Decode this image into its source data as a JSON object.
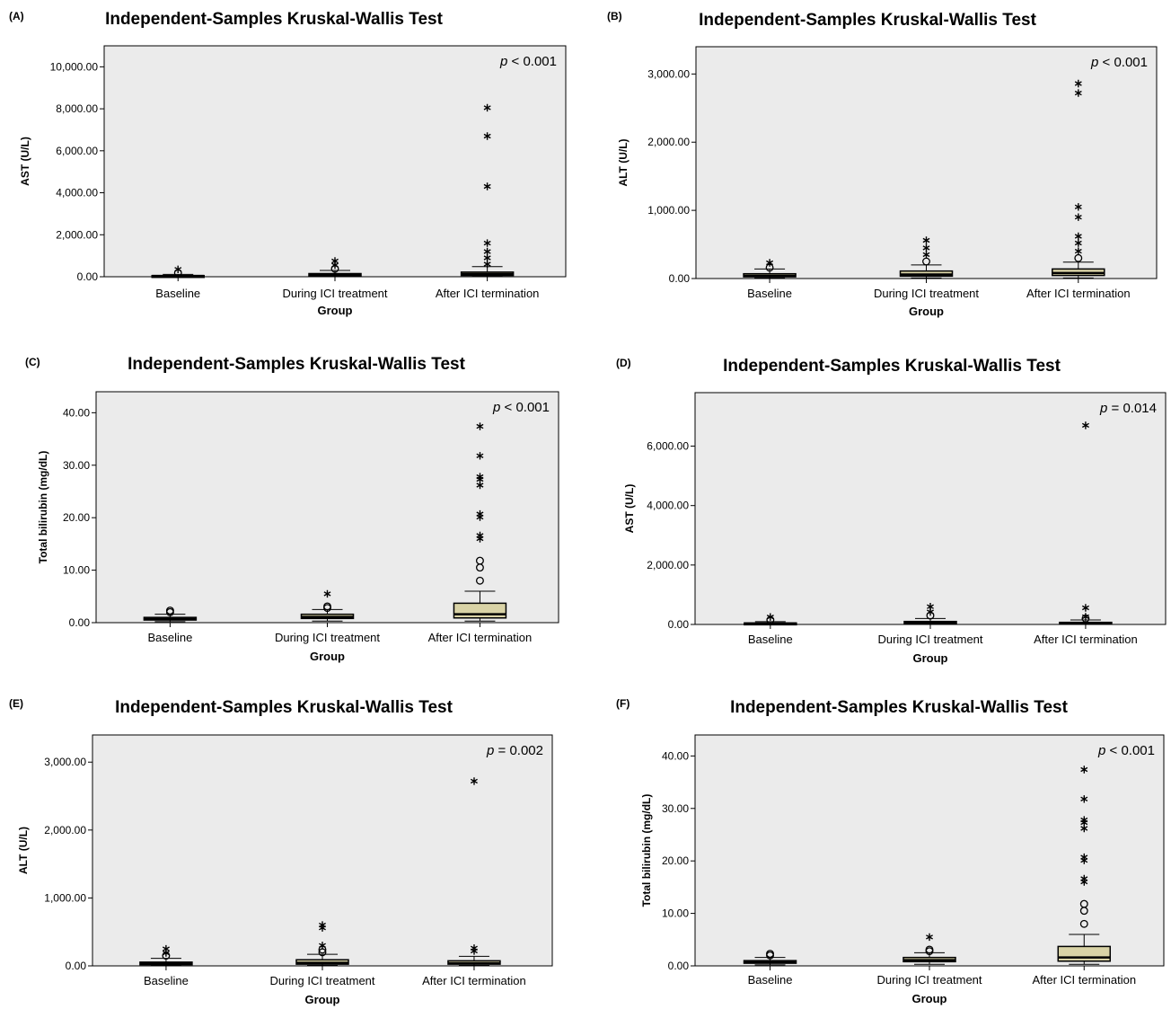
{
  "figure": {
    "background_color": "#ffffff",
    "plot_background": "#ebebeb",
    "box_fill": "#d9d3a6"
  },
  "chart_data": [
    {
      "panel_label": "(A)",
      "type": "boxplot",
      "title": "Independent-Samples Kruskal-Wallis Test",
      "xlabel": "Group",
      "ylabel": "AST (U/L)",
      "p_value": {
        "prefix": "p",
        "rest": " < 0.001"
      },
      "categories": [
        "Baseline",
        "During ICI treatment",
        "After ICI termination"
      ],
      "ylim": [
        0,
        11000
      ],
      "yticks": [
        0,
        2000,
        4000,
        6000,
        8000,
        10000
      ],
      "ytick_labels": [
        "0.00",
        "2,000.00",
        "4,000.00",
        "6,000.00",
        "8,000.00",
        "10,000.00"
      ],
      "boxes": [
        {
          "whisker_low": 15,
          "q1": 25,
          "median": 35,
          "q3": 55,
          "whisker_high": 110
        },
        {
          "whisker_low": 15,
          "q1": 40,
          "median": 80,
          "q3": 150,
          "whisker_high": 300
        },
        {
          "whisker_low": 15,
          "q1": 60,
          "median": 130,
          "q3": 220,
          "whisker_high": 480
        }
      ],
      "outliers": [
        {
          "group": 0,
          "value": 180,
          "marker": "circle"
        },
        {
          "group": 0,
          "value": 350,
          "marker": "star"
        },
        {
          "group": 1,
          "value": 380,
          "marker": "circle"
        },
        {
          "group": 1,
          "value": 550,
          "marker": "star"
        },
        {
          "group": 1,
          "value": 750,
          "marker": "star"
        },
        {
          "group": 2,
          "value": 600,
          "marker": "star"
        },
        {
          "group": 2,
          "value": 900,
          "marker": "star"
        },
        {
          "group": 2,
          "value": 1200,
          "marker": "star"
        },
        {
          "group": 2,
          "value": 1600,
          "marker": "star"
        },
        {
          "group": 2,
          "value": 4300,
          "marker": "star"
        },
        {
          "group": 2,
          "value": 6700,
          "marker": "star"
        },
        {
          "group": 2,
          "value": 8050,
          "marker": "star"
        }
      ]
    },
    {
      "panel_label": "(B)",
      "type": "boxplot",
      "title": "Independent-Samples Kruskal-Wallis Test",
      "xlabel": "Group",
      "ylabel": "ALT (U/L)",
      "p_value": {
        "prefix": "p",
        "rest": " < 0.001"
      },
      "categories": [
        "Baseline",
        "During ICI treatment",
        "After ICI termination"
      ],
      "ylim": [
        0,
        3400
      ],
      "yticks": [
        0,
        1000,
        2000,
        3000
      ],
      "ytick_labels": [
        "0.00",
        "1,000.00",
        "2,000.00",
        "3,000.00"
      ],
      "boxes": [
        {
          "whisker_low": 8,
          "q1": 25,
          "median": 40,
          "q3": 70,
          "whisker_high": 140
        },
        {
          "whisker_low": 8,
          "q1": 35,
          "median": 60,
          "q3": 110,
          "whisker_high": 200
        },
        {
          "whisker_low": 8,
          "q1": 45,
          "median": 80,
          "q3": 140,
          "whisker_high": 240
        }
      ],
      "outliers": [
        {
          "group": 0,
          "value": 160,
          "marker": "circle"
        },
        {
          "group": 0,
          "value": 230,
          "marker": "star"
        },
        {
          "group": 1,
          "value": 250,
          "marker": "circle"
        },
        {
          "group": 1,
          "value": 350,
          "marker": "star"
        },
        {
          "group": 1,
          "value": 450,
          "marker": "star"
        },
        {
          "group": 1,
          "value": 560,
          "marker": "star"
        },
        {
          "group": 2,
          "value": 300,
          "marker": "circle"
        },
        {
          "group": 2,
          "value": 400,
          "marker": "star"
        },
        {
          "group": 2,
          "value": 520,
          "marker": "star"
        },
        {
          "group": 2,
          "value": 620,
          "marker": "star"
        },
        {
          "group": 2,
          "value": 900,
          "marker": "star"
        },
        {
          "group": 2,
          "value": 1050,
          "marker": "star"
        },
        {
          "group": 2,
          "value": 2720,
          "marker": "star"
        },
        {
          "group": 2,
          "value": 2860,
          "marker": "star"
        }
      ]
    },
    {
      "panel_label": "(C)",
      "type": "boxplot",
      "title": "Independent-Samples Kruskal-Wallis Test",
      "xlabel": "Group",
      "ylabel": "Total bilirubin (mg/dL)",
      "p_value": {
        "prefix": "p",
        "rest": " < 0.001"
      },
      "categories": [
        "Baseline",
        "During ICI treatment",
        "After ICI termination"
      ],
      "ylim": [
        0,
        44
      ],
      "yticks": [
        0,
        10,
        20,
        30,
        40
      ],
      "ytick_labels": [
        "0.00",
        "10.00",
        "20.00",
        "30.00",
        "40.00"
      ],
      "boxes": [
        {
          "whisker_low": 0.2,
          "q1": 0.5,
          "median": 0.7,
          "q3": 1.0,
          "whisker_high": 1.6
        },
        {
          "whisker_low": 0.3,
          "q1": 0.8,
          "median": 1.1,
          "q3": 1.6,
          "whisker_high": 2.5
        },
        {
          "whisker_low": 0.3,
          "q1": 0.9,
          "median": 1.6,
          "q3": 3.7,
          "whisker_high": 6.0
        }
      ],
      "outliers": [
        {
          "group": 0,
          "value": 2.0,
          "marker": "circle"
        },
        {
          "group": 0,
          "value": 2.3,
          "marker": "circle"
        },
        {
          "group": 1,
          "value": 2.8,
          "marker": "circle"
        },
        {
          "group": 1,
          "value": 3.1,
          "marker": "circle"
        },
        {
          "group": 1,
          "value": 5.5,
          "marker": "star"
        },
        {
          "group": 2,
          "value": 8.0,
          "marker": "circle"
        },
        {
          "group": 2,
          "value": 10.5,
          "marker": "circle"
        },
        {
          "group": 2,
          "value": 11.8,
          "marker": "circle"
        },
        {
          "group": 2,
          "value": 16.0,
          "marker": "star"
        },
        {
          "group": 2,
          "value": 16.6,
          "marker": "star"
        },
        {
          "group": 2,
          "value": 20.1,
          "marker": "star"
        },
        {
          "group": 2,
          "value": 20.7,
          "marker": "star"
        },
        {
          "group": 2,
          "value": 26.2,
          "marker": "star"
        },
        {
          "group": 2,
          "value": 27.3,
          "marker": "star"
        },
        {
          "group": 2,
          "value": 27.8,
          "marker": "star"
        },
        {
          "group": 2,
          "value": 31.8,
          "marker": "star"
        },
        {
          "group": 2,
          "value": 37.4,
          "marker": "star"
        }
      ]
    },
    {
      "panel_label": "(D)",
      "type": "boxplot",
      "title": "Independent-Samples Kruskal-Wallis Test",
      "xlabel": "Group",
      "ylabel": "AST (U/L)",
      "p_value": {
        "prefix": "p",
        "rest": " = 0.014"
      },
      "categories": [
        "Baseline",
        "During ICI treatment",
        "After ICI termination"
      ],
      "ylim": [
        0,
        7800
      ],
      "yticks": [
        0,
        2000,
        4000,
        6000
      ],
      "ytick_labels": [
        "0.00",
        "2,000.00",
        "4,000.00",
        "6,000.00"
      ],
      "boxes": [
        {
          "whisker_low": 10,
          "q1": 22,
          "median": 32,
          "q3": 50,
          "whisker_high": 95
        },
        {
          "whisker_low": 10,
          "q1": 30,
          "median": 55,
          "q3": 100,
          "whisker_high": 200
        },
        {
          "whisker_low": 10,
          "q1": 25,
          "median": 40,
          "q3": 70,
          "whisker_high": 150
        }
      ],
      "outliers": [
        {
          "group": 0,
          "value": 150,
          "marker": "circle"
        },
        {
          "group": 0,
          "value": 250,
          "marker": "star"
        },
        {
          "group": 1,
          "value": 300,
          "marker": "circle"
        },
        {
          "group": 1,
          "value": 420,
          "marker": "star"
        },
        {
          "group": 1,
          "value": 600,
          "marker": "star"
        },
        {
          "group": 2,
          "value": 200,
          "marker": "circle"
        },
        {
          "group": 2,
          "value": 260,
          "marker": "star"
        },
        {
          "group": 2,
          "value": 560,
          "marker": "star"
        },
        {
          "group": 2,
          "value": 6700,
          "marker": "star"
        }
      ]
    },
    {
      "panel_label": "(E)",
      "type": "boxplot",
      "title": "Independent-Samples Kruskal-Wallis Test",
      "xlabel": "Group",
      "ylabel": "ALT (U/L)",
      "p_value": {
        "prefix": "p",
        "rest": " = 0.002"
      },
      "categories": [
        "Baseline",
        "During ICI treatment",
        "After ICI termination"
      ],
      "ylim": [
        0,
        3400
      ],
      "yticks": [
        0,
        1000,
        2000,
        3000
      ],
      "ytick_labels": [
        "0.00",
        "1,000.00",
        "2,000.00",
        "3,000.00"
      ],
      "boxes": [
        {
          "whisker_low": 6,
          "q1": 18,
          "median": 30,
          "q3": 55,
          "whisker_high": 110
        },
        {
          "whisker_low": 6,
          "q1": 25,
          "median": 45,
          "q3": 90,
          "whisker_high": 170
        },
        {
          "whisker_low": 6,
          "q1": 25,
          "median": 40,
          "q3": 75,
          "whisker_high": 140
        }
      ],
      "outliers": [
        {
          "group": 0,
          "value": 150,
          "marker": "circle"
        },
        {
          "group": 0,
          "value": 190,
          "marker": "star"
        },
        {
          "group": 0,
          "value": 250,
          "marker": "star"
        },
        {
          "group": 1,
          "value": 200,
          "marker": "circle"
        },
        {
          "group": 1,
          "value": 240,
          "marker": "circle"
        },
        {
          "group": 1,
          "value": 300,
          "marker": "star"
        },
        {
          "group": 1,
          "value": 560,
          "marker": "star"
        },
        {
          "group": 1,
          "value": 600,
          "marker": "star"
        },
        {
          "group": 2,
          "value": 220,
          "marker": "star"
        },
        {
          "group": 2,
          "value": 260,
          "marker": "star"
        },
        {
          "group": 2,
          "value": 2720,
          "marker": "star"
        }
      ]
    },
    {
      "panel_label": "(F)",
      "type": "boxplot",
      "title": "Independent-Samples Kruskal-Wallis Test",
      "xlabel": "Group",
      "ylabel": "Total bilirubin (mg/dL)",
      "p_value": {
        "prefix": "p",
        "rest": " < 0.001"
      },
      "categories": [
        "Baseline",
        "During ICI treatment",
        "After ICI termination"
      ],
      "ylim": [
        0,
        44
      ],
      "yticks": [
        0,
        10,
        20,
        30,
        40
      ],
      "ytick_labels": [
        "0.00",
        "10.00",
        "20.00",
        "30.00",
        "40.00"
      ],
      "boxes": [
        {
          "whisker_low": 0.2,
          "q1": 0.5,
          "median": 0.7,
          "q3": 1.0,
          "whisker_high": 1.6
        },
        {
          "whisker_low": 0.3,
          "q1": 0.8,
          "median": 1.1,
          "q3": 1.6,
          "whisker_high": 2.5
        },
        {
          "whisker_low": 0.3,
          "q1": 0.9,
          "median": 1.6,
          "q3": 3.7,
          "whisker_high": 6.0
        }
      ],
      "outliers": [
        {
          "group": 0,
          "value": 2.0,
          "marker": "circle"
        },
        {
          "group": 0,
          "value": 2.3,
          "marker": "circle"
        },
        {
          "group": 1,
          "value": 2.8,
          "marker": "circle"
        },
        {
          "group": 1,
          "value": 3.1,
          "marker": "circle"
        },
        {
          "group": 1,
          "value": 5.5,
          "marker": "star"
        },
        {
          "group": 2,
          "value": 8.0,
          "marker": "circle"
        },
        {
          "group": 2,
          "value": 10.5,
          "marker": "circle"
        },
        {
          "group": 2,
          "value": 11.8,
          "marker": "circle"
        },
        {
          "group": 2,
          "value": 16.0,
          "marker": "star"
        },
        {
          "group": 2,
          "value": 16.6,
          "marker": "star"
        },
        {
          "group": 2,
          "value": 20.1,
          "marker": "star"
        },
        {
          "group": 2,
          "value": 20.7,
          "marker": "star"
        },
        {
          "group": 2,
          "value": 26.2,
          "marker": "star"
        },
        {
          "group": 2,
          "value": 27.3,
          "marker": "star"
        },
        {
          "group": 2,
          "value": 27.8,
          "marker": "star"
        },
        {
          "group": 2,
          "value": 31.8,
          "marker": "star"
        },
        {
          "group": 2,
          "value": 37.4,
          "marker": "star"
        }
      ]
    }
  ]
}
